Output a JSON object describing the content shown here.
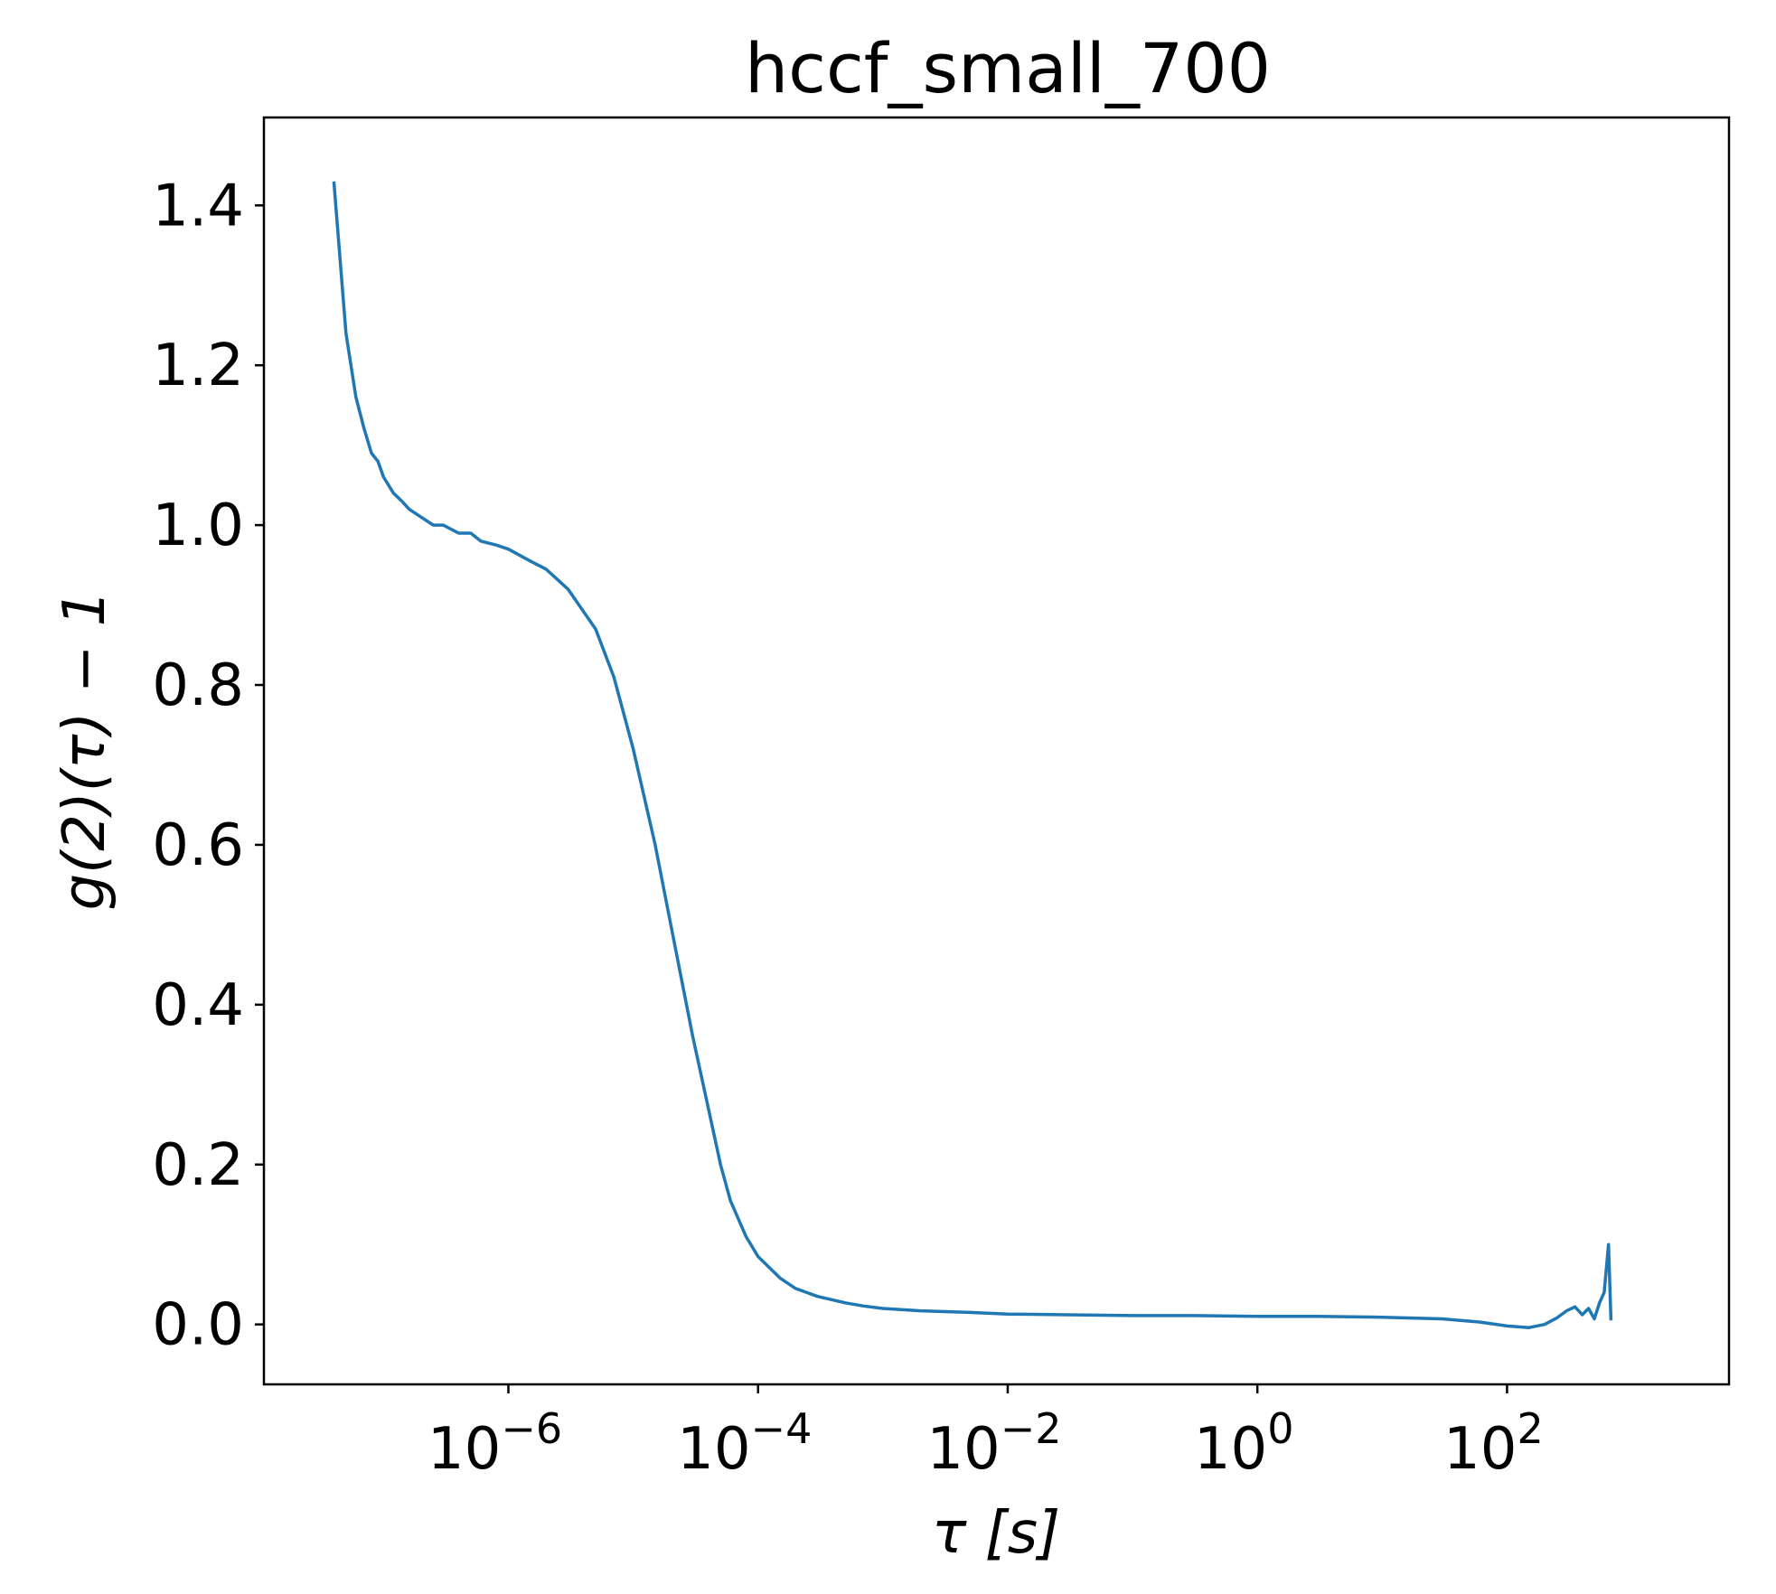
{
  "chart_data": {
    "type": "line",
    "title": "hccf_small_700",
    "xlabel": "τ [s]",
    "ylabel": "g(2)(τ) − 1",
    "x_scale": "log",
    "xlim": [
      1.1e-08,
      6000
    ],
    "ylim": [
      -0.075,
      1.51
    ],
    "grid": false,
    "legend": "none",
    "x_ticks": [
      {
        "value": 1e-06,
        "base": "10",
        "exp": "−6"
      },
      {
        "value": 0.0001,
        "base": "10",
        "exp": "−4"
      },
      {
        "value": 0.01,
        "base": "10",
        "exp": "−2"
      },
      {
        "value": 1,
        "base": "10",
        "exp": "0"
      },
      {
        "value": 100,
        "base": "10",
        "exp": "2"
      }
    ],
    "y_ticks": [
      {
        "value": 0.0,
        "label": "0.0"
      },
      {
        "value": 0.2,
        "label": "0.2"
      },
      {
        "value": 0.4,
        "label": "0.4"
      },
      {
        "value": 0.6,
        "label": "0.6"
      },
      {
        "value": 0.8,
        "label": "0.8"
      },
      {
        "value": 1.0,
        "label": "1.0"
      },
      {
        "value": 1.2,
        "label": "1.2"
      },
      {
        "value": 1.4,
        "label": "1.4"
      }
    ],
    "series": [
      {
        "color": "#1f77b4",
        "x": [
          4e-08,
          5e-08,
          6e-08,
          7e-08,
          8e-08,
          9e-08,
          1e-07,
          1.2e-07,
          1.4e-07,
          1.6e-07,
          2e-07,
          2.5e-07,
          3e-07,
          4e-07,
          5e-07,
          6e-07,
          8e-07,
          1e-06,
          1.5e-06,
          2e-06,
          3e-06,
          5e-06,
          7e-06,
          1e-05,
          1.5e-05,
          2e-05,
          3e-05,
          4e-05,
          5e-05,
          6e-05,
          8e-05,
          0.0001,
          0.00015,
          0.0002,
          0.0003,
          0.0005,
          0.0007,
          0.001,
          0.002,
          0.005,
          0.01,
          0.03,
          0.1,
          0.3,
          1,
          3,
          10,
          30,
          60,
          100,
          150,
          200,
          250,
          300,
          350,
          400,
          450,
          500,
          550,
          600,
          650,
          680
        ],
        "y": [
          1.43,
          1.24,
          1.16,
          1.12,
          1.09,
          1.08,
          1.06,
          1.04,
          1.03,
          1.02,
          1.01,
          1.0,
          1.0,
          0.99,
          0.99,
          0.98,
          0.975,
          0.97,
          0.955,
          0.945,
          0.92,
          0.87,
          0.81,
          0.72,
          0.6,
          0.5,
          0.36,
          0.27,
          0.2,
          0.155,
          0.11,
          0.085,
          0.058,
          0.045,
          0.035,
          0.027,
          0.023,
          0.02,
          0.017,
          0.015,
          0.013,
          0.012,
          0.011,
          0.011,
          0.01,
          0.01,
          0.009,
          0.007,
          0.003,
          -0.002,
          -0.004,
          0.0,
          0.008,
          0.017,
          0.022,
          0.012,
          0.02,
          0.007,
          0.027,
          0.04,
          0.1,
          0.005
        ]
      }
    ]
  }
}
